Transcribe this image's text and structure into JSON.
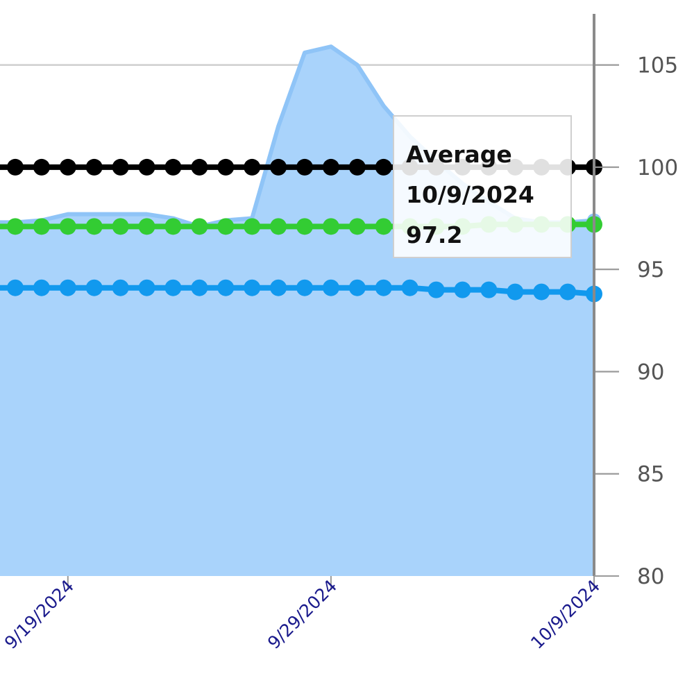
{
  "chart_data": {
    "type": "line",
    "x": [
      "9/17/2024",
      "9/18/2024",
      "9/19/2024",
      "9/20/2024",
      "9/21/2024",
      "9/22/2024",
      "9/23/2024",
      "9/24/2024",
      "9/25/2024",
      "9/26/2024",
      "9/27/2024",
      "9/28/2024",
      "9/29/2024",
      "9/30/2024",
      "10/1/2024",
      "10/2/2024",
      "10/3/2024",
      "10/4/2024",
      "10/5/2024",
      "10/6/2024",
      "10/7/2024",
      "10/8/2024",
      "10/9/2024"
    ],
    "x_ticks": [
      "9/19/2024",
      "9/29/2024",
      "10/9/2024"
    ],
    "y_ticks": [
      80,
      85,
      90,
      95,
      100,
      105
    ],
    "ylim": [
      80,
      107.5
    ],
    "xlim": [
      "9/16.5/2024",
      "10/9/2024"
    ],
    "y_axis_position": "right",
    "grid": true,
    "series": [
      {
        "type": "area",
        "color": "#a9d3fb",
        "values": [
          97.3,
          97.4,
          97.7,
          97.7,
          97.7,
          97.7,
          97.5,
          97.1,
          97.4,
          97.5,
          102,
          105.6,
          105.9,
          105.0,
          103.0,
          101.5,
          100.3,
          99.2,
          98.3,
          97.5,
          97.3,
          97.3,
          97.4
        ]
      },
      {
        "type": "line",
        "color": "#000000",
        "values": [
          100,
          100,
          100,
          100,
          100,
          100,
          100,
          100,
          100,
          100,
          100,
          100,
          100,
          100,
          100,
          100,
          100,
          100,
          100,
          100,
          100,
          100,
          100
        ]
      },
      {
        "type": "line",
        "color": "#33cc33",
        "values": [
          97.1,
          97.1,
          97.1,
          97.1,
          97.1,
          97.1,
          97.1,
          97.1,
          97.1,
          97.1,
          97.1,
          97.1,
          97.1,
          97.1,
          97.1,
          97.1,
          97.1,
          97.1,
          97.2,
          97.2,
          97.2,
          97.2,
          97.2
        ]
      },
      {
        "type": "line",
        "color": "#1199ee",
        "values": [
          94.1,
          94.1,
          94.1,
          94.1,
          94.1,
          94.1,
          94.1,
          94.1,
          94.1,
          94.1,
          94.1,
          94.1,
          94.1,
          94.1,
          94.1,
          94.1,
          94.0,
          94.0,
          94.0,
          93.9,
          93.9,
          93.9,
          93.8
        ]
      }
    ]
  },
  "tooltip": {
    "series_name": "Average",
    "date": "10/9/2024",
    "value": "97.2"
  }
}
